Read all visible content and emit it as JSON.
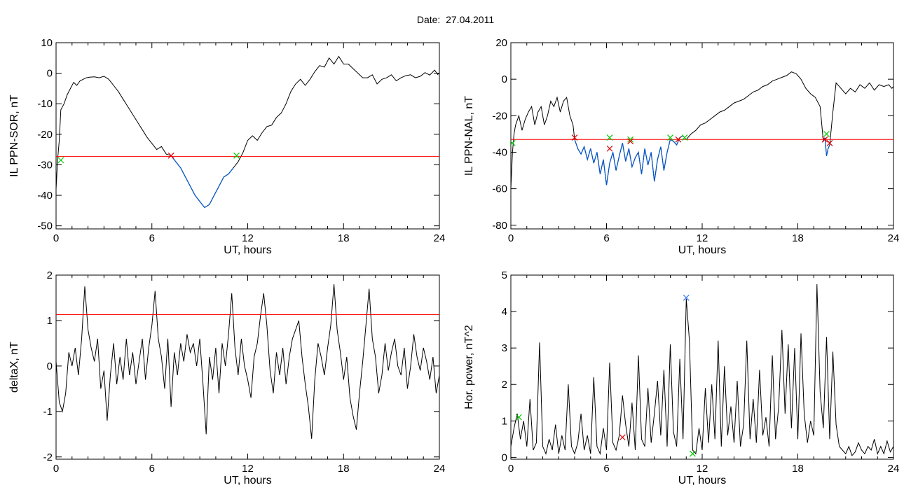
{
  "page": {
    "title": "Date:  27.04.2011"
  },
  "colors": {
    "data": "#000000",
    "threshold": "#ff0000",
    "event": "#0055cc",
    "start_marker": "#00cc00",
    "end_marker": "#dd0000",
    "peak_marker": "#3377ff"
  },
  "chart_data": [
    {
      "id": "sor",
      "type": "line",
      "xlabel": "UT, hours",
      "ylabel": "IL PPN-SOR, nT",
      "xlim": [
        0,
        24
      ],
      "ylim": [
        -51,
        10
      ],
      "xticks": [
        0,
        6,
        12,
        18,
        24
      ],
      "yticks": [
        10,
        0,
        -10,
        -20,
        -30,
        -40,
        -50
      ],
      "threshold": -27.3,
      "event_ranges": [
        [
          7.2,
          11.3
        ]
      ],
      "series": [
        {
          "x": [
            0,
            0.1,
            0.2,
            0.3,
            0.5,
            0.7,
            0.9,
            1.1,
            1.3,
            1.5,
            1.7,
            1.9,
            2.1,
            2.4,
            2.7,
            3.0,
            3.3,
            3.6,
            3.9,
            4.2,
            4.5,
            4.8,
            5.1,
            5.4,
            5.7,
            6.0,
            6.3,
            6.6,
            6.9,
            7.2,
            7.5,
            7.8,
            8.1,
            8.4,
            8.7,
            9.0,
            9.3,
            9.6,
            9.9,
            10.2,
            10.5,
            10.8,
            11.1,
            11.4,
            11.7,
            12.0,
            12.3,
            12.6,
            12.9,
            13.2,
            13.5,
            13.8,
            14.1,
            14.4,
            14.7,
            15.0,
            15.3,
            15.6,
            15.9,
            16.2,
            16.5,
            16.8,
            17.1,
            17.4,
            17.7,
            18.0,
            18.3,
            18.6,
            18.9,
            19.2,
            19.5,
            19.8,
            20.1,
            20.4,
            20.7,
            21.0,
            21.3,
            21.6,
            21.9,
            22.2,
            22.5,
            22.8,
            23.1,
            23.4,
            23.7,
            23.9,
            24
          ],
          "y": [
            -38,
            -28,
            -22,
            -12,
            -10,
            -7,
            -5,
            -3,
            -4,
            -2.5,
            -2,
            -1.5,
            -1.3,
            -1.2,
            -1.5,
            -1.0,
            -2.0,
            -4.0,
            -6.0,
            -8.5,
            -11,
            -13.5,
            -16,
            -18.5,
            -21,
            -23,
            -25,
            -24,
            -26.5,
            -27,
            -29,
            -31,
            -34,
            -37,
            -40,
            -42,
            -44,
            -43,
            -40,
            -37,
            -34,
            -33,
            -31,
            -29,
            -26,
            -22,
            -20.5,
            -22,
            -19.5,
            -17.5,
            -17,
            -14.5,
            -13,
            -10,
            -6,
            -3.5,
            -2,
            -4,
            -2,
            0.5,
            2.5,
            2,
            5,
            3,
            5.5,
            3,
            3,
            1.5,
            0,
            -1.5,
            -1.5,
            -0.5,
            -3.5,
            -2,
            -1.5,
            -0.5,
            -2.5,
            -1.5,
            -0.8,
            -0.5,
            -1.5,
            -1.0,
            0.2,
            -0.6,
            1.0,
            -0.4,
            0.2
          ]
        }
      ],
      "markers": [
        {
          "x": 0.3,
          "y": -28.5,
          "kind": "start"
        },
        {
          "x": 7.2,
          "y": -27.0,
          "kind": "end"
        },
        {
          "x": 11.3,
          "y": -27.0,
          "kind": "start"
        }
      ]
    },
    {
      "id": "nal",
      "type": "line",
      "xlabel": "UT, hours",
      "ylabel": "IL PPN-NAL, nT",
      "xlim": [
        0,
        24
      ],
      "ylim": [
        -82,
        20
      ],
      "xticks": [
        0,
        6,
        12,
        18,
        24
      ],
      "yticks": [
        20,
        0,
        -20,
        -40,
        -60,
        -80
      ],
      "threshold": -33,
      "event_ranges": [
        [
          4.0,
          10.8
        ],
        [
          19.6,
          20.0
        ]
      ],
      "series": [
        {
          "x": [
            0,
            0.1,
            0.2,
            0.3,
            0.5,
            0.7,
            0.9,
            1.1,
            1.3,
            1.5,
            1.7,
            1.9,
            2.1,
            2.3,
            2.5,
            2.7,
            2.9,
            3.1,
            3.3,
            3.5,
            3.7,
            3.9,
            4.0,
            4.2,
            4.4,
            4.6,
            4.8,
            5.0,
            5.2,
            5.4,
            5.6,
            5.8,
            6.0,
            6.2,
            6.4,
            6.6,
            6.8,
            7.0,
            7.2,
            7.4,
            7.6,
            7.8,
            8.0,
            8.2,
            8.4,
            8.6,
            8.8,
            9.0,
            9.2,
            9.4,
            9.6,
            9.8,
            10.0,
            10.2,
            10.4,
            10.6,
            10.8,
            11.0,
            11.3,
            11.6,
            11.9,
            12.2,
            12.5,
            12.8,
            13.1,
            13.4,
            13.7,
            14.0,
            14.3,
            14.6,
            14.9,
            15.2,
            15.5,
            15.8,
            16.1,
            16.4,
            16.7,
            17.0,
            17.3,
            17.6,
            17.9,
            18.2,
            18.5,
            18.8,
            19.1,
            19.4,
            19.6,
            19.7,
            19.8,
            19.9,
            20.0,
            20.2,
            20.4,
            20.6,
            20.8,
            21.0,
            21.3,
            21.6,
            21.9,
            22.2,
            22.5,
            22.8,
            23.1,
            23.4,
            23.7,
            23.9,
            24
          ],
          "y": [
            -60,
            -40,
            -30,
            -25,
            -20,
            -28,
            -22,
            -18,
            -15,
            -25,
            -18,
            -15,
            -25,
            -20,
            -12,
            -15,
            -10,
            -18,
            -12,
            -10,
            -20,
            -25,
            -33,
            -38,
            -41,
            -37,
            -44,
            -38,
            -46,
            -40,
            -52,
            -44,
            -58,
            -46,
            -40,
            -50,
            -42,
            -35,
            -45,
            -38,
            -48,
            -43,
            -40,
            -52,
            -38,
            -47,
            -40,
            -56,
            -44,
            -37,
            -50,
            -40,
            -33,
            -34,
            -36,
            -32,
            -31,
            -33,
            -30,
            -28,
            -25,
            -24,
            -22,
            -20,
            -18,
            -17,
            -15,
            -13,
            -12,
            -11,
            -9,
            -7,
            -6,
            -4,
            -3,
            -1,
            0,
            1,
            2,
            4,
            3,
            0,
            -5,
            -8,
            -10,
            -15,
            -34,
            -32,
            -42,
            -38,
            -36,
            -18,
            -2,
            -4,
            -6,
            -8,
            -5,
            -7,
            -3,
            -5,
            -2,
            -6,
            -3,
            -4,
            -3,
            -5,
            -4
          ]
        }
      ],
      "markers": [
        {
          "x": 0.1,
          "y": -35,
          "kind": "start"
        },
        {
          "x": 4.0,
          "y": -32,
          "kind": "end"
        },
        {
          "x": 6.2,
          "y": -32,
          "kind": "start"
        },
        {
          "x": 6.2,
          "y": -38,
          "kind": "end"
        },
        {
          "x": 7.5,
          "y": -33,
          "kind": "start"
        },
        {
          "x": 7.5,
          "y": -34,
          "kind": "end"
        },
        {
          "x": 10.0,
          "y": -32,
          "kind": "start"
        },
        {
          "x": 10.5,
          "y": -33,
          "kind": "end"
        },
        {
          "x": 10.9,
          "y": -32,
          "kind": "start"
        },
        {
          "x": 19.7,
          "y": -33,
          "kind": "end"
        },
        {
          "x": 19.8,
          "y": -30,
          "kind": "start"
        },
        {
          "x": 20.0,
          "y": -35,
          "kind": "end"
        }
      ]
    },
    {
      "id": "deltax",
      "type": "line",
      "xlabel": "UT, hours",
      "ylabel": "deltaX, nT",
      "xlim": [
        0,
        24
      ],
      "ylim": [
        -2.05,
        2
      ],
      "xticks": [
        0,
        6,
        12,
        18,
        24
      ],
      "yticks": [
        2,
        1,
        0,
        -1,
        -2
      ],
      "threshold": 1.13,
      "event_ranges": [],
      "series": [
        {
          "x": [
            0,
            0.2,
            0.4,
            0.6,
            0.8,
            1.0,
            1.2,
            1.4,
            1.6,
            1.8,
            2.0,
            2.2,
            2.4,
            2.6,
            2.8,
            3.0,
            3.2,
            3.4,
            3.6,
            3.8,
            4.0,
            4.2,
            4.4,
            4.6,
            4.8,
            5.0,
            5.2,
            5.4,
            5.6,
            5.8,
            6.0,
            6.2,
            6.4,
            6.6,
            6.8,
            7.0,
            7.2,
            7.4,
            7.6,
            7.8,
            8.0,
            8.2,
            8.4,
            8.6,
            8.8,
            9.0,
            9.2,
            9.4,
            9.6,
            9.8,
            10.0,
            10.2,
            10.4,
            10.6,
            10.8,
            11.0,
            11.2,
            11.4,
            11.6,
            11.8,
            12.0,
            12.2,
            12.4,
            12.6,
            12.8,
            13.0,
            13.2,
            13.4,
            13.6,
            13.8,
            14.0,
            14.2,
            14.4,
            14.6,
            14.8,
            15.0,
            15.2,
            15.4,
            15.6,
            15.8,
            16.0,
            16.2,
            16.4,
            16.6,
            16.8,
            17.0,
            17.2,
            17.4,
            17.6,
            17.8,
            18.0,
            18.2,
            18.4,
            18.6,
            18.8,
            19.0,
            19.2,
            19.4,
            19.6,
            19.8,
            20.0,
            20.2,
            20.4,
            20.6,
            20.8,
            21.0,
            21.2,
            21.4,
            21.6,
            21.8,
            22.0,
            22.2,
            22.4,
            22.6,
            22.8,
            23.0,
            23.2,
            23.4,
            23.6,
            23.8,
            24.0
          ],
          "y": [
            0.1,
            -0.8,
            -1.0,
            -0.6,
            0.3,
            0.0,
            0.4,
            -0.2,
            0.6,
            1.75,
            0.8,
            0.4,
            0.1,
            0.6,
            -0.5,
            -0.1,
            -1.2,
            -0.2,
            0.5,
            -0.4,
            0.2,
            -0.3,
            0.6,
            -0.2,
            0.3,
            -0.4,
            0.1,
            0.6,
            -0.3,
            0.4,
            0.9,
            1.65,
            0.6,
            0.2,
            -0.5,
            0.6,
            -0.9,
            0.3,
            -0.2,
            0.5,
            0.1,
            0.7,
            0.3,
            0.5,
            0.0,
            0.6,
            -0.4,
            -1.5,
            0.2,
            -0.3,
            0.4,
            -0.6,
            0.5,
            0.0,
            0.7,
            1.6,
            0.4,
            -0.2,
            0.6,
            0.0,
            -0.3,
            -0.7,
            0.2,
            0.5,
            1.1,
            1.6,
            0.9,
            -0.1,
            -0.6,
            0.3,
            -0.2,
            0.4,
            -0.4,
            0.2,
            0.6,
            0.8,
            1.0,
            0.2,
            -0.4,
            -0.9,
            -1.6,
            -0.3,
            0.5,
            0.2,
            -0.2,
            0.4,
            0.9,
            1.8,
            0.8,
            0.3,
            -0.3,
            0.2,
            -0.7,
            -1.1,
            -1.4,
            -0.6,
            0.1,
            0.9,
            1.7,
            0.6,
            0.2,
            -0.6,
            -0.2,
            0.5,
            -0.1,
            0.3,
            0.6,
            0.0,
            -0.2,
            0.4,
            -0.5,
            0.0,
            0.7,
            0.2,
            -0.1,
            0.4,
            0.1,
            -0.3,
            0.2,
            -0.6,
            -0.2
          ]
        }
      ],
      "markers": []
    },
    {
      "id": "power",
      "type": "line",
      "xlabel": "UT, hours",
      "ylabel": "Hor. power, nT^2",
      "xlim": [
        0,
        24
      ],
      "ylim": [
        -0.05,
        5
      ],
      "xticks": [
        0,
        6,
        12,
        18,
        24
      ],
      "yticks": [
        5,
        4,
        3,
        2,
        1,
        0
      ],
      "threshold": null,
      "event_ranges": [],
      "series": [
        {
          "x": [
            0,
            0.2,
            0.4,
            0.6,
            0.8,
            1.0,
            1.2,
            1.4,
            1.6,
            1.8,
            2.0,
            2.2,
            2.4,
            2.6,
            2.8,
            3.0,
            3.2,
            3.4,
            3.6,
            3.8,
            4.0,
            4.2,
            4.4,
            4.6,
            4.8,
            5.0,
            5.2,
            5.4,
            5.6,
            5.8,
            6.0,
            6.2,
            6.4,
            6.6,
            6.8,
            7.0,
            7.2,
            7.4,
            7.6,
            7.8,
            8.0,
            8.2,
            8.4,
            8.6,
            8.8,
            9.0,
            9.2,
            9.4,
            9.6,
            9.8,
            10.0,
            10.2,
            10.4,
            10.6,
            10.8,
            11.0,
            11.2,
            11.4,
            11.6,
            11.8,
            12.0,
            12.2,
            12.4,
            12.6,
            12.8,
            13.0,
            13.2,
            13.4,
            13.6,
            13.8,
            14.0,
            14.2,
            14.4,
            14.6,
            14.8,
            15.0,
            15.2,
            15.4,
            15.6,
            15.8,
            16.0,
            16.2,
            16.4,
            16.6,
            16.8,
            17.0,
            17.2,
            17.4,
            17.6,
            17.8,
            18.0,
            18.2,
            18.4,
            18.6,
            18.8,
            19.0,
            19.2,
            19.4,
            19.6,
            19.8,
            20.0,
            20.2,
            20.4,
            20.6,
            20.8,
            21.0,
            21.2,
            21.4,
            21.6,
            21.8,
            22.0,
            22.2,
            22.4,
            22.6,
            22.8,
            23.0,
            23.2,
            23.4,
            23.6,
            23.8,
            24.0
          ],
          "y": [
            0.3,
            0.8,
            1.2,
            0.5,
            1.0,
            0.3,
            1.6,
            0.2,
            0.4,
            3.15,
            0.3,
            0.1,
            0.5,
            0.2,
            0.9,
            0.1,
            0.6,
            0.2,
            2.0,
            0.3,
            0.1,
            0.4,
            1.2,
            0.2,
            0.6,
            0.1,
            2.2,
            0.3,
            0.1,
            0.8,
            0.2,
            2.6,
            0.4,
            0.2,
            0.6,
            1.7,
            0.9,
            0.3,
            1.5,
            0.2,
            2.8,
            0.5,
            0.3,
            1.9,
            0.4,
            1.2,
            2.1,
            0.6,
            2.4,
            0.3,
            3.1,
            0.7,
            0.3,
            2.7,
            0.5,
            4.35,
            3.2,
            0.2,
            0.1,
            0.8,
            0.2,
            1.9,
            0.4,
            2.0,
            0.5,
            3.2,
            0.3,
            2.5,
            0.6,
            1.4,
            0.4,
            2.1,
            0.3,
            0.9,
            3.2,
            0.5,
            1.6,
            0.4,
            2.4,
            0.6,
            1.1,
            0.3,
            2.8,
            0.5,
            1.4,
            3.5,
            1.2,
            3.1,
            0.8,
            3.0,
            0.5,
            3.4,
            1.2,
            0.4,
            1.0,
            0.6,
            4.75,
            1.8,
            0.8,
            3.3,
            0.5,
            2.9,
            0.9,
            0.3,
            0.2,
            0.1,
            0.3,
            0.05,
            0.15,
            0.4,
            0.2,
            0.1,
            0.3,
            0.2,
            0.5,
            0.1,
            0.3,
            0.1,
            0.45,
            0.15,
            0.3
          ]
        }
      ],
      "markers": [
        {
          "x": 0.5,
          "y": 1.1,
          "kind": "start"
        },
        {
          "x": 7.0,
          "y": 0.55,
          "kind": "end"
        },
        {
          "x": 11.0,
          "y": 4.38,
          "kind": "peak"
        },
        {
          "x": 11.4,
          "y": 0.1,
          "kind": "start"
        }
      ]
    }
  ]
}
